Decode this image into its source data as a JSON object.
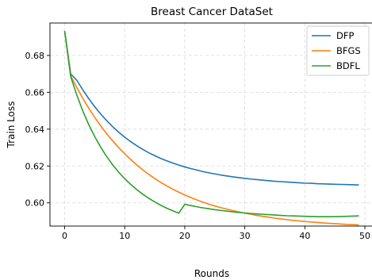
{
  "chart_data": {
    "type": "line",
    "title": "Breast Cancer DataSet",
    "xlabel": "Rounds",
    "ylabel": "Train Loss",
    "xlim": [
      -2.45,
      51.45
    ],
    "ylim": [
      0.5874,
      0.6976
    ],
    "xticks": [
      0,
      10,
      20,
      30,
      40,
      50
    ],
    "yticks": [
      0.6,
      0.62,
      0.64,
      0.66,
      0.68
    ],
    "ytick_labels": [
      "0.60",
      "0.62",
      "0.64",
      "0.66",
      "0.68"
    ],
    "grid": true,
    "legend_position": "top-right",
    "x": [
      0,
      1,
      2,
      3,
      4,
      5,
      6,
      7,
      8,
      9,
      10,
      11,
      12,
      13,
      14,
      15,
      16,
      17,
      18,
      19,
      20,
      21,
      22,
      23,
      24,
      25,
      26,
      27,
      28,
      29,
      30,
      31,
      32,
      33,
      34,
      35,
      36,
      37,
      38,
      39,
      40,
      41,
      42,
      43,
      44,
      45,
      46,
      47,
      48,
      49
    ],
    "series": [
      {
        "name": "DFP",
        "color": "#1f77b4",
        "values": [
          0.6932,
          0.67,
          0.6666,
          0.6614,
          0.6566,
          0.6522,
          0.6482,
          0.6446,
          0.6413,
          0.6383,
          0.6356,
          0.6332,
          0.631,
          0.629,
          0.6272,
          0.6256,
          0.6241,
          0.6228,
          0.6216,
          0.6205,
          0.6195,
          0.6186,
          0.6178,
          0.617,
          0.6163,
          0.6157,
          0.6151,
          0.6146,
          0.6141,
          0.6137,
          0.6133,
          0.6129,
          0.6126,
          0.6123,
          0.612,
          0.6117,
          0.6115,
          0.6113,
          0.6111,
          0.6109,
          0.6107,
          0.6106,
          0.6104,
          0.6103,
          0.6102,
          0.6101,
          0.61,
          0.6099,
          0.6098,
          0.6097
        ]
      },
      {
        "name": "BFGS",
        "color": "#ff7f0e",
        "values": [
          0.6932,
          0.669,
          0.6627,
          0.6568,
          0.6514,
          0.6464,
          0.6418,
          0.6375,
          0.6336,
          0.63,
          0.6266,
          0.6235,
          0.6206,
          0.6179,
          0.6155,
          0.6132,
          0.6111,
          0.6092,
          0.6074,
          0.6058,
          0.6043,
          0.6029,
          0.6016,
          0.6004,
          0.5993,
          0.5983,
          0.5974,
          0.5966,
          0.5958,
          0.5951,
          0.5944,
          0.5938,
          0.5932,
          0.5927,
          0.5922,
          0.5917,
          0.5913,
          0.5909,
          0.5905,
          0.5902,
          0.5899,
          0.5896,
          0.5894,
          0.5891,
          0.5889,
          0.5887,
          0.5885,
          0.5883,
          0.5882,
          0.588
        ]
      },
      {
        "name": "BDFL",
        "color": "#2ca02c",
        "values": [
          0.6932,
          0.6685,
          0.6587,
          0.65,
          0.6425,
          0.636,
          0.6302,
          0.6251,
          0.6206,
          0.6166,
          0.6131,
          0.61,
          0.6072,
          0.6047,
          0.6025,
          0.6005,
          0.5987,
          0.5971,
          0.5957,
          0.5944,
          0.5992,
          0.5985,
          0.5979,
          0.5973,
          0.5968,
          0.5963,
          0.5959,
          0.5955,
          0.5951,
          0.5948,
          0.5945,
          0.5942,
          0.594,
          0.5938,
          0.5936,
          0.5934,
          0.5932,
          0.593,
          0.5929,
          0.5928,
          0.5927,
          0.5926,
          0.5925,
          0.5925,
          0.5925,
          0.5925,
          0.5926,
          0.5927,
          0.5928,
          0.5929
        ]
      }
    ]
  }
}
